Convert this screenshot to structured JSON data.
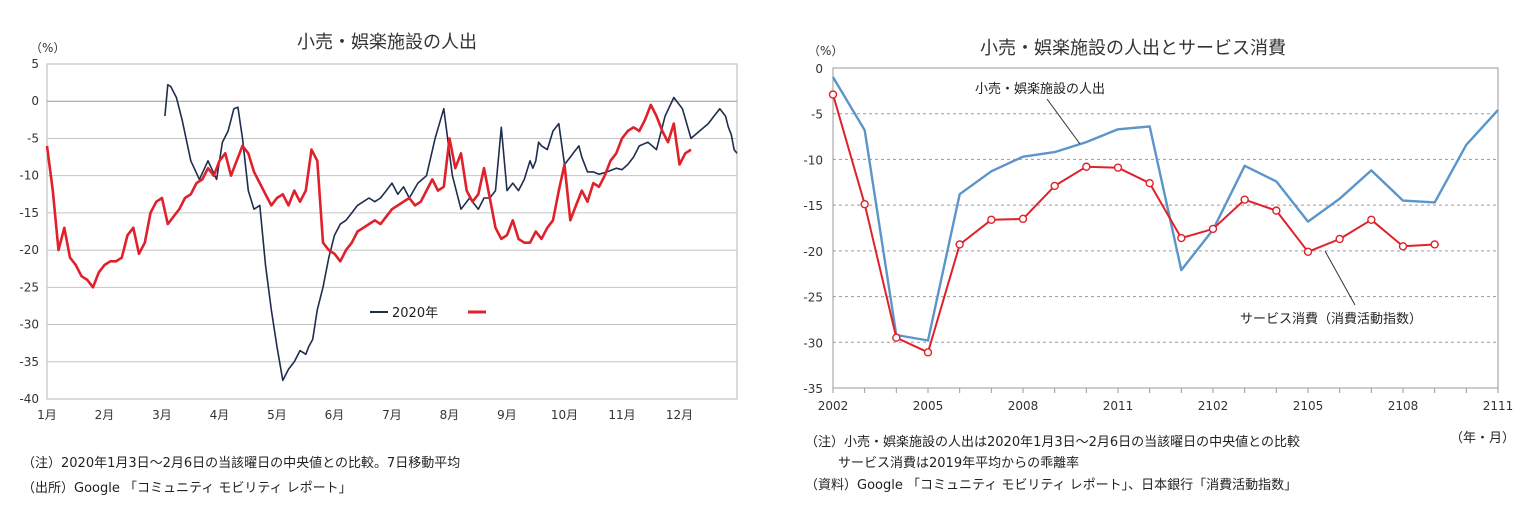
{
  "chart_data": [
    {
      "type": "line",
      "title": "小売・娯楽施設の人出",
      "ylabel": "（%）",
      "ylim": [
        -40,
        5
      ],
      "yticks": [
        5,
        0,
        -5,
        -10,
        -15,
        -20,
        -25,
        -30,
        -35,
        -40
      ],
      "xlim": [
        0,
        12
      ],
      "xtick_labels": [
        "1月",
        "2月",
        "3月",
        "4月",
        "5月",
        "6月",
        "7月",
        "8月",
        "9月",
        "10月",
        "11月",
        "12月"
      ],
      "legend_position": "center-right",
      "grid": true,
      "series": [
        {
          "name": "2020年",
          "color": "#1f2d4f",
          "x": [
            2.05,
            2.1,
            2.15,
            2.25,
            2.35,
            2.5,
            2.65,
            2.8,
            2.95,
            3.05,
            3.15,
            3.25,
            3.32,
            3.4,
            3.5,
            3.6,
            3.7,
            3.8,
            3.9,
            4.0,
            4.1,
            4.2,
            4.3,
            4.4,
            4.5,
            4.55,
            4.62,
            4.7,
            4.8,
            4.9,
            5.0,
            5.1,
            5.2,
            5.3,
            5.4,
            5.5,
            5.6,
            5.7,
            5.8,
            5.9,
            6.0,
            6.1,
            6.2,
            6.3,
            6.45,
            6.6,
            6.75,
            6.9,
            7.05,
            7.2,
            7.35,
            7.5,
            7.6,
            7.7,
            7.8,
            7.9,
            8.0,
            8.1,
            8.2,
            8.3,
            8.4,
            8.45,
            8.5,
            8.55,
            8.6,
            8.7,
            8.8,
            8.9,
            9.0,
            9.1,
            9.15,
            9.2,
            9.25,
            9.3,
            9.4,
            9.5,
            9.6,
            9.7,
            9.8,
            9.9,
            10.0,
            10.1,
            10.2,
            10.3,
            10.45,
            10.6,
            10.75,
            10.9,
            11.05,
            11.2,
            11.35,
            11.5,
            11.6,
            11.7,
            11.8,
            11.85,
            11.9,
            11.95,
            12.0
          ],
          "y": [
            -2.0,
            2.2,
            2.0,
            0.5,
            -2.5,
            -8.0,
            -10.5,
            -8.0,
            -10.5,
            -5.5,
            -4.0,
            -1.0,
            -0.8,
            -5.0,
            -12.0,
            -14.5,
            -14.0,
            -22.0,
            -28.0,
            -33.0,
            -37.5,
            -36.0,
            -35.0,
            -33.5,
            -34.0,
            -33.0,
            -32.0,
            -28.0,
            -25.0,
            -21.0,
            -18.0,
            -16.5,
            -16.0,
            -15.0,
            -14.0,
            -13.5,
            -13.0,
            -13.5,
            -13.0,
            -12.0,
            -11.0,
            -12.5,
            -11.5,
            -13.0,
            -11.0,
            -10.0,
            -5.0,
            -1.0,
            -10.0,
            -14.5,
            -13.0,
            -14.5,
            -13.0,
            -13.0,
            -12.0,
            -3.5,
            -12.0,
            -11.0,
            -12.0,
            -10.5,
            -8.0,
            -9.0,
            -8.0,
            -5.5,
            -6.0,
            -6.5,
            -4.0,
            -3.0,
            -8.5,
            -7.5,
            -7.0,
            -6.5,
            -6.0,
            -7.5,
            -9.5,
            -9.5,
            -9.8,
            -9.6,
            -9.3,
            -9.0,
            -9.2,
            -8.5,
            -7.5,
            -6.0,
            -5.5,
            -6.5,
            -2.0,
            0.5,
            -1.0,
            -5.0,
            -4.0,
            -3.0,
            -2.0,
            -1.0,
            -2.0,
            -3.5,
            -4.5,
            -6.5,
            -7.0
          ],
          "_note": "approximate reading of the 2020 trace"
        }
      ]
    },
    {
      "type": "line",
      "title": "小売・娯楽施設の人出とサービス消費",
      "ylabel": "（%）",
      "xlabel": "（年・月）",
      "ylim": [
        -35,
        0
      ],
      "yticks": [
        0,
        -5,
        -10,
        -15,
        -20,
        -25,
        -30,
        -35
      ],
      "x": [
        "2002",
        "2003",
        "2004",
        "2005",
        "2006",
        "2007",
        "2008",
        "2009",
        "2010",
        "2011",
        "2012",
        "2101",
        "2102",
        "2103",
        "2104",
        "2105",
        "2106",
        "2107",
        "2108",
        "2109",
        "2110",
        "2111"
      ],
      "xtick_labels": [
        "2002",
        "2005",
        "2008",
        "2011",
        "2102",
        "2105",
        "2108",
        "2111"
      ],
      "grid": "dashed",
      "series": [
        {
          "name": "小売・娯楽施設の人出",
          "color": "#5b95c9",
          "values": [
            -1.0,
            -6.8,
            -29.2,
            -29.8,
            -13.8,
            -11.3,
            -9.7,
            -9.2,
            -8.1,
            -6.7,
            -6.4,
            -22.1,
            -17.7,
            -10.7,
            -12.4,
            -16.8,
            -14.3,
            -11.2,
            -14.5,
            -14.7,
            -8.4,
            -4.6
          ]
        },
        {
          "name": "サービス消費（消費活動指数）",
          "color": "#e0202a",
          "values": [
            -2.9,
            -14.9,
            -29.5,
            -31.1,
            -19.3,
            -16.6,
            -16.5,
            -12.9,
            -10.8,
            -10.9,
            -12.6,
            -18.6,
            -17.6,
            -14.4,
            -15.6,
            -20.1,
            -18.7,
            -16.6,
            -19.5,
            -19.3,
            null,
            null
          ]
        }
      ]
    }
  ],
  "left_notes": {
    "note1": "（注）2020年1月3日～2月6日の当該曜日の中央値との比較。7日移動平均",
    "note2": "（出所）Google 「コミュニティ モビリティ レポート」"
  },
  "right_notes": {
    "note1": "（注）小売・娯楽施設の人出は2020年1月3日～2月6日の当該曜日の中央値との比較",
    "note2": "サービス消費は2019年平均からの乖離率",
    "note3": "（資料）Google 「コミュニティ モビリティ レポート」、日本銀行「消費活動指数」"
  }
}
